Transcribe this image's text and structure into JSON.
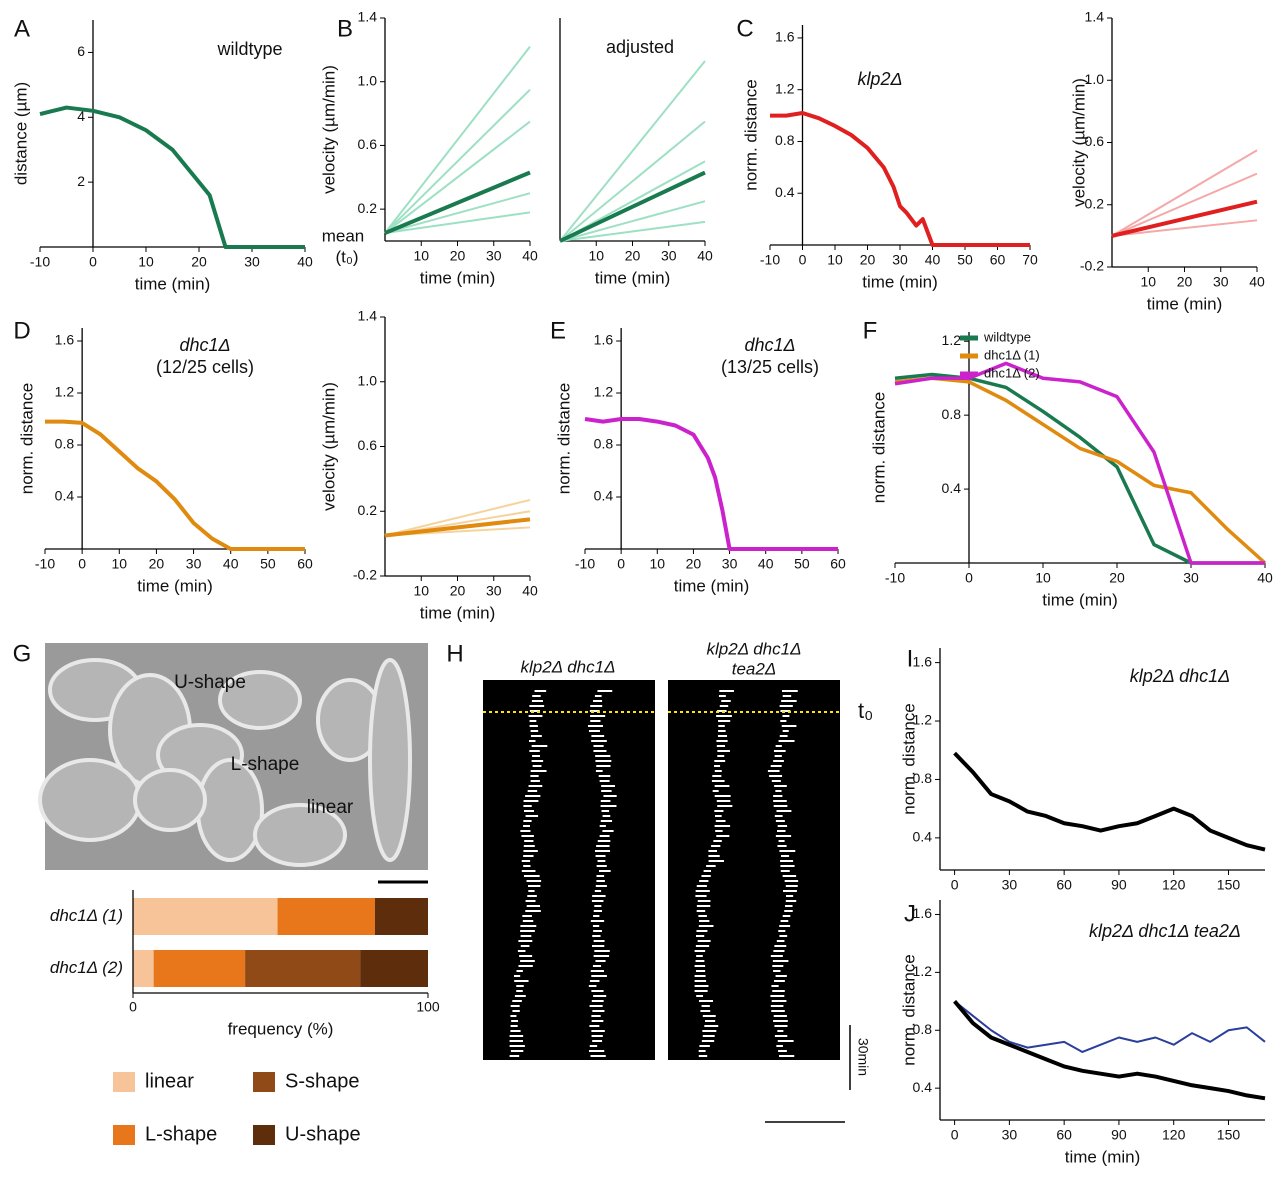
{
  "panel_labels": [
    "A",
    "B",
    "C",
    "D",
    "E",
    "F",
    "G",
    "H",
    "I",
    "J"
  ],
  "chart_data": [
    {
      "type": "line",
      "title": "wildtype",
      "xlabel": "time (min)",
      "ylabel": "distance (µm)",
      "xlim": [
        -10,
        40
      ],
      "ylim": [
        0,
        7
      ],
      "xticks": [
        -10,
        0,
        10,
        20,
        30,
        40
      ],
      "yticks": [
        2,
        4,
        6
      ],
      "x": [
        -10,
        -5,
        0,
        5,
        10,
        15,
        20,
        22,
        25,
        30,
        35,
        40
      ],
      "series": [],
      "mean": {
        "color": "#1a7a4f",
        "values": [
          4.1,
          4.3,
          4.2,
          4.0,
          3.6,
          3.0,
          2.0,
          1.6,
          0,
          0,
          0,
          0
        ]
      }
    },
    {
      "type": "line",
      "xlabel": "time (min)",
      "ylabel": "velocity (µm/min)",
      "annotations": [
        "mean",
        "(t₀)"
      ],
      "xlim": [
        0,
        40
      ],
      "ylim": [
        0,
        1.4
      ],
      "xticks": [
        10,
        20,
        30,
        40
      ],
      "yticks": [
        0.2,
        0.6,
        {
          "value": 1,
          "label": "1.0"
        },
        1.4
      ],
      "x": [
        0,
        40
      ],
      "series": [
        {
          "color": "#9de0c4",
          "values": [
            0.05,
            1.22
          ]
        },
        {
          "color": "#9de0c4",
          "values": [
            0.05,
            0.95
          ]
        },
        {
          "color": "#9de0c4",
          "values": [
            0.05,
            0.75
          ]
        },
        {
          "color": "#9de0c4",
          "values": [
            0.05,
            0.3
          ]
        },
        {
          "color": "#9de0c4",
          "values": [
            0.05,
            0.18
          ]
        }
      ],
      "mean": {
        "color": "#1a7a4f",
        "values": [
          0.05,
          0.43
        ]
      }
    },
    {
      "type": "line",
      "title": "adjusted",
      "xlabel": "time (min)",
      "xlim": [
        0,
        40
      ],
      "ylim": [
        0,
        1.4
      ],
      "xticks": [
        10,
        20,
        30,
        40
      ],
      "x": [
        0,
        40
      ],
      "series": [
        {
          "color": "#9de0c4",
          "values": [
            0,
            1.13
          ]
        },
        {
          "color": "#9de0c4",
          "values": [
            0,
            0.75
          ]
        },
        {
          "color": "#9de0c4",
          "values": [
            0,
            0.5
          ]
        },
        {
          "color": "#9de0c4",
          "values": [
            0,
            0.25
          ]
        },
        {
          "color": "#9de0c4",
          "values": [
            0,
            0.12
          ]
        }
      ],
      "mean": {
        "color": "#1a7a4f",
        "values": [
          0,
          0.43
        ]
      }
    },
    {
      "type": "line",
      "title": "klp2Δ",
      "xlabel": "time (min)",
      "ylabel": "norm. distance",
      "xlim": [
        -10,
        70
      ],
      "ylim": [
        0,
        1.7
      ],
      "xticks": [
        -10,
        0,
        10,
        20,
        30,
        40,
        50,
        60,
        70
      ],
      "yticks": [
        0.4,
        0.8,
        1.2,
        1.6
      ],
      "x": [
        -10,
        -5,
        0,
        5,
        10,
        15,
        20,
        25,
        28,
        30,
        32,
        35,
        37,
        40,
        50,
        70
      ],
      "series": [],
      "mean": {
        "color": "#e02020",
        "values": [
          1.0,
          1.0,
          1.02,
          0.98,
          0.92,
          0.85,
          0.75,
          0.6,
          0.45,
          0.3,
          0.25,
          0.15,
          0.2,
          0,
          0,
          0
        ]
      }
    },
    {
      "type": "line",
      "xlabel": "time (min)",
      "ylabel": "velocity (µm/min)",
      "xlim": [
        0,
        40
      ],
      "ylim": [
        -0.2,
        1.4
      ],
      "xticks": [
        10,
        20,
        30,
        40
      ],
      "yticks": [
        -0.2,
        0.2,
        0.6,
        {
          "value": 1,
          "label": "1.0"
        },
        1.4
      ],
      "x": [
        0,
        40
      ],
      "series": [
        {
          "color": "#f4a8a8",
          "values": [
            0,
            0.55
          ]
        },
        {
          "color": "#f4a8a8",
          "values": [
            0,
            0.4
          ]
        },
        {
          "color": "#f4a8a8",
          "values": [
            0,
            0.1
          ]
        }
      ],
      "mean": {
        "color": "#e02020",
        "values": [
          0,
          0.22
        ]
      }
    },
    {
      "type": "line",
      "title": "dhc1Δ",
      "subtitle": "(12/25 cells)",
      "xlabel": "time (min)",
      "ylabel": "norm. distance",
      "xlim": [
        -10,
        60
      ],
      "ylim": [
        0,
        1.7
      ],
      "xticks": [
        -10,
        0,
        10,
        20,
        30,
        40,
        50,
        60
      ],
      "yticks": [
        0.4,
        0.8,
        1.2,
        1.6
      ],
      "x": [
        -10,
        -5,
        0,
        5,
        10,
        15,
        20,
        25,
        30,
        35,
        40,
        60
      ],
      "series": [],
      "mean": {
        "color": "#e08a10",
        "values": [
          0.98,
          0.98,
          0.97,
          0.88,
          0.75,
          0.62,
          0.52,
          0.38,
          0.2,
          0.08,
          0,
          0
        ]
      }
    },
    {
      "type": "line",
      "xlabel": "time (min)",
      "ylabel": "velocity (µm/min)",
      "xlim": [
        0,
        40
      ],
      "ylim": [
        -0.2,
        1.4
      ],
      "xticks": [
        10,
        20,
        30,
        40
      ],
      "yticks": [
        -0.2,
        0.2,
        0.6,
        {
          "value": 1,
          "label": "1.0"
        },
        1.4
      ],
      "x": [
        0,
        40
      ],
      "series": [
        {
          "color": "#f6d39c",
          "values": [
            0.05,
            0.27
          ]
        },
        {
          "color": "#f6d39c",
          "values": [
            0.05,
            0.2
          ]
        },
        {
          "color": "#f6d39c",
          "values": [
            0.05,
            0.1
          ]
        }
      ],
      "mean": {
        "color": "#e08a10",
        "values": [
          0.05,
          0.15
        ]
      }
    },
    {
      "type": "line",
      "title": "dhc1Δ",
      "subtitle": "(13/25 cells)",
      "xlabel": "time (min)",
      "ylabel": "norm. distance",
      "xlim": [
        -10,
        60
      ],
      "ylim": [
        0,
        1.7
      ],
      "xticks": [
        -10,
        0,
        10,
        20,
        30,
        40,
        50,
        60
      ],
      "yticks": [
        0.4,
        0.8,
        1.2,
        1.6
      ],
      "x": [
        -10,
        -5,
        0,
        5,
        10,
        15,
        20,
        24,
        26,
        28,
        30,
        35,
        40,
        60
      ],
      "series": [],
      "mean": {
        "color": "#cc22cc",
        "values": [
          1.0,
          0.98,
          1.0,
          1.0,
          0.98,
          0.95,
          0.88,
          0.7,
          0.55,
          0.3,
          0,
          0,
          0,
          0
        ]
      }
    },
    {
      "type": "line",
      "xlabel": "time (min)",
      "ylabel": "norm. distance",
      "xlim": [
        -10,
        40
      ],
      "ylim": [
        0,
        1.25
      ],
      "xticks": [
        -10,
        0,
        10,
        20,
        30,
        40
      ],
      "yticks": [
        0.4,
        0.8,
        1.2
      ],
      "x": [
        -10,
        -5,
        0,
        5,
        10,
        15,
        20,
        25,
        30,
        35,
        40
      ],
      "series": [
        {
          "name": "wildtype",
          "color": "#1a7a4f",
          "values": [
            1.0,
            1.02,
            1.0,
            0.95,
            0.82,
            0.68,
            0.52,
            0.1,
            0,
            0,
            0
          ]
        },
        {
          "name": "dhc1Δ (1)",
          "color": "#e08a10",
          "values": [
            0.98,
            1.0,
            0.98,
            0.88,
            0.75,
            0.62,
            0.55,
            0.42,
            0.38,
            0.18,
            0
          ]
        },
        {
          "name": "dhc1Δ (2)",
          "color": "#cc22cc",
          "values": [
            0.97,
            1.0,
            1.0,
            1.08,
            1.0,
            0.98,
            0.9,
            0.6,
            0,
            0,
            0
          ]
        }
      ]
    },
    {
      "type": "line",
      "title": "klp2Δ dhc1Δ",
      "ylabel": "norm. distance",
      "xlim": [
        -8,
        170
      ],
      "ylim": [
        0.18,
        1.7
      ],
      "xticks": [
        0,
        30,
        60,
        90,
        120,
        150
      ],
      "yticks": [
        0.4,
        0.8,
        1.2,
        1.6
      ],
      "x": [
        0,
        10,
        20,
        30,
        40,
        50,
        60,
        70,
        80,
        90,
        100,
        110,
        120,
        130,
        140,
        150,
        160,
        170
      ],
      "series": [],
      "mean": {
        "color": "#000000",
        "values": [
          0.98,
          0.85,
          0.7,
          0.65,
          0.58,
          0.55,
          0.5,
          0.48,
          0.45,
          0.48,
          0.5,
          0.55,
          0.6,
          0.55,
          0.45,
          0.4,
          0.35,
          0.32
        ]
      }
    },
    {
      "type": "line",
      "title": "klp2Δ dhc1Δ tea2Δ",
      "xlabel": "time (min)",
      "ylabel": "norm. distance",
      "xlim": [
        -8,
        170
      ],
      "ylim": [
        0.18,
        1.7
      ],
      "xticks": [
        0,
        30,
        60,
        90,
        120,
        150
      ],
      "yticks": [
        0.4,
        0.8,
        1.2,
        1.6
      ],
      "x": [
        0,
        10,
        20,
        30,
        40,
        50,
        60,
        70,
        80,
        90,
        100,
        110,
        120,
        130,
        140,
        150,
        160,
        170
      ],
      "series": [
        {
          "color": "#2a3f9a",
          "values": [
            1.0,
            0.9,
            0.8,
            0.72,
            0.68,
            0.7,
            0.72,
            0.65,
            0.7,
            0.75,
            0.72,
            0.75,
            0.7,
            0.78,
            0.72,
            0.8,
            0.82,
            0.72
          ]
        }
      ],
      "mean": {
        "color": "#000000",
        "values": [
          1.0,
          0.85,
          0.75,
          0.7,
          0.65,
          0.6,
          0.55,
          0.52,
          0.5,
          0.48,
          0.5,
          0.48,
          0.45,
          0.42,
          0.4,
          0.38,
          0.35,
          0.33
        ]
      }
    },
    {
      "type": "stacked_bar",
      "xlabel": "frequency (%)",
      "xlim": [
        0,
        100
      ],
      "xticks": [
        0,
        100
      ],
      "categories": [
        "dhc1Δ (1)",
        "dhc1Δ (2)"
      ],
      "series": [
        {
          "name": "linear",
          "color": "#f7c49a",
          "values": [
            49,
            7
          ]
        },
        {
          "name": "L-shape",
          "color": "#e8761a",
          "values": [
            33,
            31
          ]
        },
        {
          "name": "S-shape",
          "color": "#8f4a17",
          "values": [
            0,
            39
          ]
        },
        {
          "name": "U-shape",
          "color": "#5e2e0c",
          "values": [
            18,
            23
          ]
        }
      ]
    }
  ],
  "micrograph": {
    "labels": [
      "U-shape",
      "L-shape",
      "linear"
    ]
  },
  "kymographs": {
    "titles": [
      "klp2Δ dhc1Δ",
      "klp2Δ dhc1Δ",
      "tea2Δ"
    ],
    "t0": "t₀",
    "scale": "30min"
  }
}
